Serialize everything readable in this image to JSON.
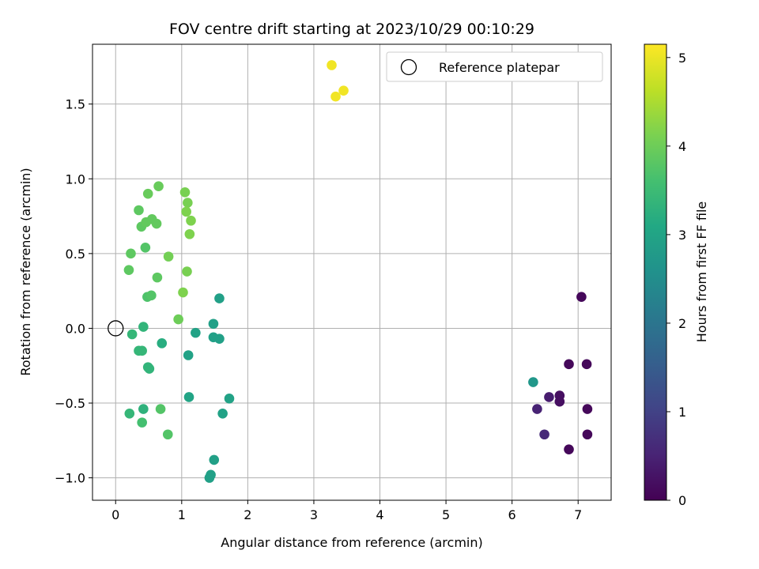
{
  "chart_data": {
    "type": "scatter",
    "title": "FOV centre drift starting at 2023/10/29 00:10:29",
    "xlabel": "Angular distance from reference (arcmin)",
    "ylabel": "Rotation from reference (arcmin)",
    "xlim": [
      -0.35,
      7.5
    ],
    "ylim": [
      -1.15,
      1.9
    ],
    "xticks": [
      0,
      1,
      2,
      3,
      4,
      5,
      6,
      7
    ],
    "yticks": [
      -1.0,
      -0.5,
      0.0,
      0.5,
      1.0,
      1.5
    ],
    "xtick_labels": [
      "0",
      "1",
      "2",
      "3",
      "4",
      "5",
      "6",
      "7"
    ],
    "ytick_labels": [
      "−1.0",
      "−0.5",
      "0.0",
      "0.5",
      "1.0",
      "1.5"
    ],
    "grid": true,
    "legend": {
      "position": "top-right",
      "entries": [
        "Reference platepar"
      ]
    },
    "reference_point": {
      "x": 0.0,
      "y": 0.0
    },
    "colorbar": {
      "label": "Hours from first FF file",
      "range": [
        0,
        5.15
      ],
      "ticks": [
        0,
        1,
        2,
        3,
        4,
        5
      ],
      "tick_labels": [
        "0",
        "1",
        "2",
        "3",
        "4",
        "5"
      ],
      "colormap": "viridis"
    },
    "points": [
      {
        "x": 7.05,
        "y": 0.21,
        "h": 0.1
      },
      {
        "x": 6.86,
        "y": -0.24,
        "h": 0.1
      },
      {
        "x": 7.13,
        "y": -0.24,
        "h": 0.1
      },
      {
        "x": 7.14,
        "y": -0.54,
        "h": 0.1
      },
      {
        "x": 7.14,
        "y": -0.71,
        "h": 0.1
      },
      {
        "x": 6.86,
        "y": -0.81,
        "h": 0.1
      },
      {
        "x": 6.72,
        "y": -0.45,
        "h": 0.2
      },
      {
        "x": 6.72,
        "y": -0.49,
        "h": 0.2
      },
      {
        "x": 6.56,
        "y": -0.46,
        "h": 0.4
      },
      {
        "x": 6.38,
        "y": -0.54,
        "h": 0.5
      },
      {
        "x": 6.49,
        "y": -0.71,
        "h": 0.6
      },
      {
        "x": 6.32,
        "y": -0.36,
        "h": 2.7
      },
      {
        "x": 1.57,
        "y": 0.2,
        "h": 2.9
      },
      {
        "x": 1.48,
        "y": 0.03,
        "h": 2.9
      },
      {
        "x": 1.48,
        "y": -0.06,
        "h": 2.9
      },
      {
        "x": 1.57,
        "y": -0.07,
        "h": 2.9
      },
      {
        "x": 1.21,
        "y": -0.03,
        "h": 2.95
      },
      {
        "x": 1.1,
        "y": -0.18,
        "h": 2.95
      },
      {
        "x": 1.11,
        "y": -0.46,
        "h": 3.0
      },
      {
        "x": 1.72,
        "y": -0.47,
        "h": 2.95
      },
      {
        "x": 1.62,
        "y": -0.57,
        "h": 2.95
      },
      {
        "x": 1.49,
        "y": -0.88,
        "h": 2.9
      },
      {
        "x": 1.44,
        "y": -0.98,
        "h": 2.9
      },
      {
        "x": 1.42,
        "y": -1.0,
        "h": 2.9
      },
      {
        "x": 0.42,
        "y": 0.01,
        "h": 3.35
      },
      {
        "x": 0.25,
        "y": -0.04,
        "h": 3.4
      },
      {
        "x": 0.35,
        "y": -0.15,
        "h": 3.4
      },
      {
        "x": 0.4,
        "y": -0.15,
        "h": 3.4
      },
      {
        "x": 0.49,
        "y": -0.26,
        "h": 3.35
      },
      {
        "x": 0.51,
        "y": -0.27,
        "h": 3.35
      },
      {
        "x": 0.7,
        "y": -0.1,
        "h": 3.2
      },
      {
        "x": 0.42,
        "y": -0.54,
        "h": 3.3
      },
      {
        "x": 0.21,
        "y": -0.57,
        "h": 3.4
      },
      {
        "x": 0.4,
        "y": -0.63,
        "h": 3.6
      },
      {
        "x": 0.68,
        "y": -0.54,
        "h": 3.75
      },
      {
        "x": 0.79,
        "y": -0.71,
        "h": 3.75
      },
      {
        "x": 0.48,
        "y": 0.21,
        "h": 3.7
      },
      {
        "x": 0.54,
        "y": 0.22,
        "h": 3.75
      },
      {
        "x": 0.95,
        "y": 0.06,
        "h": 4.0
      },
      {
        "x": 0.2,
        "y": 0.39,
        "h": 3.85
      },
      {
        "x": 0.23,
        "y": 0.5,
        "h": 3.85
      },
      {
        "x": 0.45,
        "y": 0.54,
        "h": 3.75
      },
      {
        "x": 0.63,
        "y": 0.34,
        "h": 3.85
      },
      {
        "x": 0.8,
        "y": 0.48,
        "h": 4.05
      },
      {
        "x": 1.02,
        "y": 0.24,
        "h": 4.15
      },
      {
        "x": 1.08,
        "y": 0.38,
        "h": 4.1
      },
      {
        "x": 0.35,
        "y": 0.79,
        "h": 3.85
      },
      {
        "x": 0.39,
        "y": 0.68,
        "h": 3.85
      },
      {
        "x": 0.46,
        "y": 0.71,
        "h": 3.9
      },
      {
        "x": 0.55,
        "y": 0.73,
        "h": 3.9
      },
      {
        "x": 0.62,
        "y": 0.7,
        "h": 3.9
      },
      {
        "x": 0.49,
        "y": 0.9,
        "h": 3.95
      },
      {
        "x": 0.65,
        "y": 0.95,
        "h": 3.95
      },
      {
        "x": 1.05,
        "y": 0.91,
        "h": 4.1
      },
      {
        "x": 1.09,
        "y": 0.84,
        "h": 4.1
      },
      {
        "x": 1.07,
        "y": 0.78,
        "h": 4.15
      },
      {
        "x": 1.14,
        "y": 0.72,
        "h": 4.15
      },
      {
        "x": 1.12,
        "y": 0.63,
        "h": 4.15
      },
      {
        "x": 3.27,
        "y": 1.76,
        "h": 5.05
      },
      {
        "x": 3.45,
        "y": 1.59,
        "h": 5.05
      },
      {
        "x": 3.33,
        "y": 1.55,
        "h": 5.05
      }
    ]
  }
}
